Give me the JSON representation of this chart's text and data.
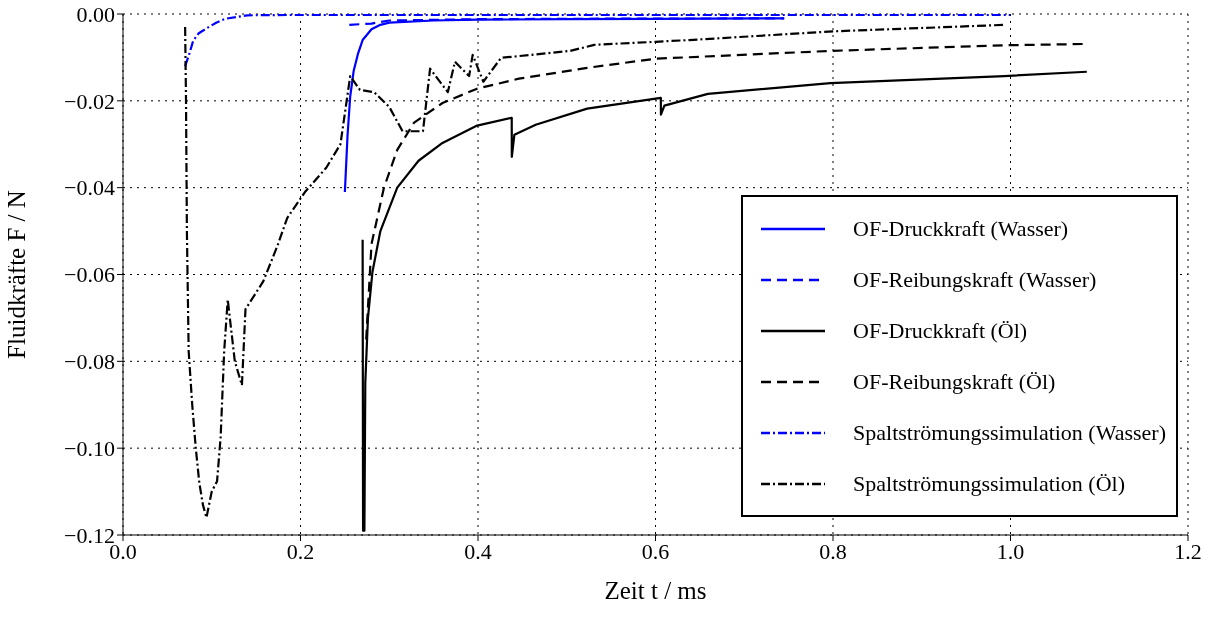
{
  "chart_data": {
    "type": "line",
    "xlabel": "Zeit t / ms",
    "ylabel": "Fluidkräfte F / N",
    "xlim": [
      0,
      1.2
    ],
    "xticks": [
      {
        "value": 0,
        "label": "0.0"
      },
      {
        "value": 0.2,
        "label": "0.2"
      },
      {
        "value": 0.4,
        "label": "0.4"
      },
      {
        "value": 0.6,
        "label": "0.6"
      },
      {
        "value": 0.8,
        "label": "0.8"
      },
      {
        "value": 1.0,
        "label": "1.0"
      },
      {
        "value": 1.2,
        "label": "1.2"
      }
    ],
    "ylim": [
      -0.12,
      0
    ],
    "yticks": [
      {
        "value": -0.12,
        "label": "−0.12"
      },
      {
        "value": -0.1,
        "label": "−0.10"
      },
      {
        "value": -0.08,
        "label": "−0.08"
      },
      {
        "value": -0.06,
        "label": "−0.06"
      },
      {
        "value": -0.04,
        "label": "−0.04"
      },
      {
        "value": -0.02,
        "label": "−0.02"
      },
      {
        "value": 0,
        "label": "0.00"
      }
    ],
    "grid": true,
    "legend": "bottom right",
    "marker": "none",
    "series": [
      {
        "name": "OF-Druckkraft (Wasser)",
        "color": "#0000ff",
        "line_style": "solid",
        "x": [
          0.25,
          0.253,
          0.256,
          0.26,
          0.265,
          0.27,
          0.28,
          0.29,
          0.3,
          0.35,
          0.4,
          0.5,
          0.6,
          0.745
        ],
        "values": [
          -0.041,
          -0.028,
          -0.019,
          -0.013,
          -0.009,
          -0.006,
          -0.0035,
          -0.0025,
          -0.002,
          -0.0015,
          -0.0013,
          -0.0012,
          -0.0011,
          -0.001
        ]
      },
      {
        "name": "OF-Reibungskraft (Wasser)",
        "color": "#0000ff",
        "line_style": "dashed",
        "x": [
          0.255,
          0.28,
          0.3,
          0.4,
          0.5,
          0.745
        ],
        "values": [
          -0.0025,
          -0.0022,
          -0.0015,
          -0.0012,
          -0.0011,
          -0.001
        ]
      },
      {
        "name": "OF-Druckkraft (Öl)",
        "color": "#000000",
        "line_style": "solid",
        "x": [
          0.27,
          0.2705,
          0.272,
          0.273,
          0.276,
          0.281,
          0.29,
          0.309,
          0.333,
          0.36,
          0.399,
          0.438,
          0.4381,
          0.441,
          0.465,
          0.523,
          0.606,
          0.6061,
          0.61,
          0.659,
          0.797,
          0.993,
          1.086
        ],
        "values": [
          -0.052,
          -0.119,
          -0.119,
          -0.085,
          -0.07,
          -0.0595,
          -0.05,
          -0.04,
          -0.0338,
          -0.0297,
          -0.0257,
          -0.0239,
          -0.0329,
          -0.0278,
          -0.0255,
          -0.0218,
          -0.0193,
          -0.0232,
          -0.0211,
          -0.0184,
          -0.0159,
          -0.0143,
          -0.0133
        ]
      },
      {
        "name": "OF-Reibungskraft (Öl)",
        "color": "#000000",
        "line_style": "dashed",
        "x": [
          0.274,
          0.28,
          0.294,
          0.309,
          0.328,
          0.36,
          0.399,
          0.446,
          0.523,
          0.6,
          0.797,
          0.993,
          1.086
        ],
        "values": [
          -0.075,
          -0.053,
          -0.04,
          -0.0313,
          -0.025,
          -0.0205,
          -0.0172,
          -0.0149,
          -0.0124,
          -0.0103,
          -0.0085,
          -0.0072,
          -0.0069
        ]
      },
      {
        "name": "Spaltströmungssimulation (Wasser)",
        "color": "#0000ff",
        "line_style": "dashdot",
        "x": [
          0.07,
          0.075,
          0.079,
          0.085,
          0.095,
          0.105,
          0.115,
          0.14,
          0.2,
          0.4,
          0.6,
          0.8,
          1.0
        ],
        "values": [
          -0.012,
          -0.009,
          -0.0062,
          -0.0045,
          -0.0032,
          -0.002,
          -0.0011,
          -0.0003,
          -0.0002,
          -0.0002,
          -0.0002,
          -0.0002,
          -0.0002
        ]
      },
      {
        "name": "Spaltströmungssimulation (Öl)",
        "color": "#000000",
        "line_style": "dashdot",
        "x": [
          0.07,
          0.071,
          0.072,
          0.074,
          0.078,
          0.082,
          0.086,
          0.09,
          0.094,
          0.1,
          0.106,
          0.11,
          0.114,
          0.118,
          0.126,
          0.134,
          0.138,
          0.158,
          0.174,
          0.185,
          0.205,
          0.229,
          0.245,
          0.256,
          0.267,
          0.283,
          0.3,
          0.315,
          0.338,
          0.346,
          0.366,
          0.374,
          0.39,
          0.394,
          0.406,
          0.426,
          0.504,
          0.531,
          0.6,
          0.638,
          0.8,
          0.993
        ],
        "values": [
          -0.003,
          -0.02,
          -0.05,
          -0.0777,
          -0.09,
          -0.1,
          -0.108,
          -0.113,
          -0.116,
          -0.11,
          -0.1076,
          -0.0975,
          -0.0777,
          -0.0658,
          -0.08,
          -0.0855,
          -0.068,
          -0.0616,
          -0.0534,
          -0.047,
          -0.041,
          -0.0354,
          -0.03,
          -0.0143,
          -0.0175,
          -0.018,
          -0.0214,
          -0.027,
          -0.027,
          -0.0126,
          -0.018,
          -0.011,
          -0.0143,
          -0.0094,
          -0.0156,
          -0.0101,
          -0.0085,
          -0.0071,
          -0.0064,
          -0.006,
          -0.004,
          -0.0025
        ]
      }
    ]
  }
}
